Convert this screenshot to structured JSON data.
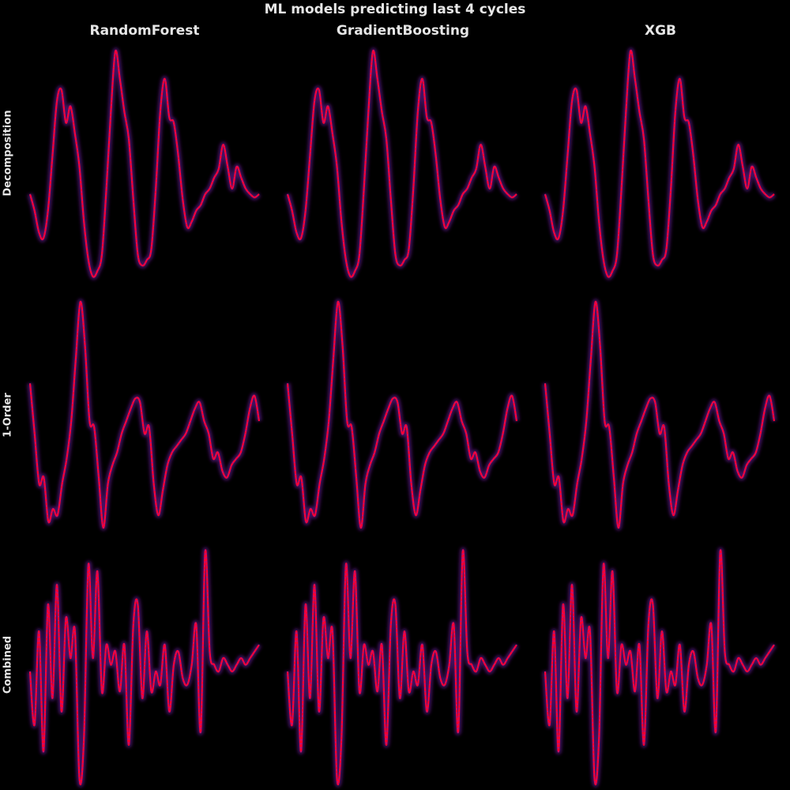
{
  "title": "ML models predicting last 4 cycles",
  "columns": [
    "RandomForest",
    "GradientBoosting",
    "XGB"
  ],
  "rows": [
    "Decomposition",
    "1-Order",
    "Combined"
  ],
  "colors": {
    "background": "#000000",
    "actual": "#ff0033",
    "predicted": "#7a1fb3"
  },
  "chart_data": {
    "type": "line",
    "grid": false,
    "axes_visible": false,
    "panels": [
      {
        "row": "Decomposition",
        "note": "same series in each model column",
        "series": [
          {
            "values": [
              0.05,
              -0.1,
              -0.3,
              -0.35,
              -0.1,
              0.4,
              0.9,
              1.0,
              0.7,
              0.85,
              0.6,
              0.3,
              -0.2,
              -0.55,
              -0.7,
              -0.65,
              -0.5,
              0.1,
              0.8,
              1.35,
              1.1,
              0.8,
              0.55,
              0.0,
              -0.5,
              -0.6,
              -0.55,
              -0.45,
              0.1,
              0.8,
              1.1,
              0.75,
              0.7,
              0.4,
              0.0,
              -0.25,
              -0.2,
              -0.1,
              -0.05,
              0.05,
              0.1,
              0.2,
              0.28,
              0.5,
              0.3,
              0.1,
              0.3,
              0.2,
              0.1,
              0.05,
              0.02,
              0.05
            ]
          }
        ]
      },
      {
        "row": "1-Order",
        "note": "same series in each model column",
        "series": [
          {
            "values": [
              0.5,
              0.1,
              -0.3,
              -0.25,
              -0.6,
              -0.5,
              -0.55,
              -0.3,
              -0.1,
              0.2,
              0.7,
              1.15,
              0.8,
              0.2,
              0.15,
              -0.25,
              -0.65,
              -0.3,
              -0.15,
              -0.05,
              0.1,
              0.2,
              0.3,
              0.38,
              0.35,
              0.1,
              0.15,
              -0.3,
              -0.55,
              -0.35,
              -0.15,
              -0.05,
              0.0,
              0.05,
              0.1,
              0.2,
              0.3,
              0.35,
              0.2,
              0.1,
              -0.1,
              -0.05,
              -0.2,
              -0.25,
              -0.15,
              -0.1,
              -0.05,
              0.1,
              0.3,
              0.4,
              0.2
            ]
          }
        ]
      },
      {
        "row": "Combined",
        "note": "same series in each model column",
        "series": [
          {
            "values": [
              0.0,
              -0.4,
              0.3,
              -0.6,
              0.5,
              -0.2,
              0.65,
              -0.3,
              0.4,
              0.1,
              0.3,
              -0.8,
              -0.5,
              0.8,
              0.1,
              0.75,
              -0.15,
              0.2,
              0.05,
              0.15,
              -0.15,
              0.2,
              -0.55,
              0.35,
              0.5,
              -0.2,
              0.3,
              -0.15,
              0.0,
              -0.1,
              0.2,
              -0.3,
              0.05,
              0.15,
              -0.05,
              -0.1,
              0.05,
              0.35,
              -0.45,
              0.9,
              0.15,
              0.05,
              0.0,
              0.1,
              0.05,
              0.0,
              0.05,
              0.1,
              0.05,
              0.1,
              0.15,
              0.2
            ]
          }
        ]
      }
    ]
  }
}
